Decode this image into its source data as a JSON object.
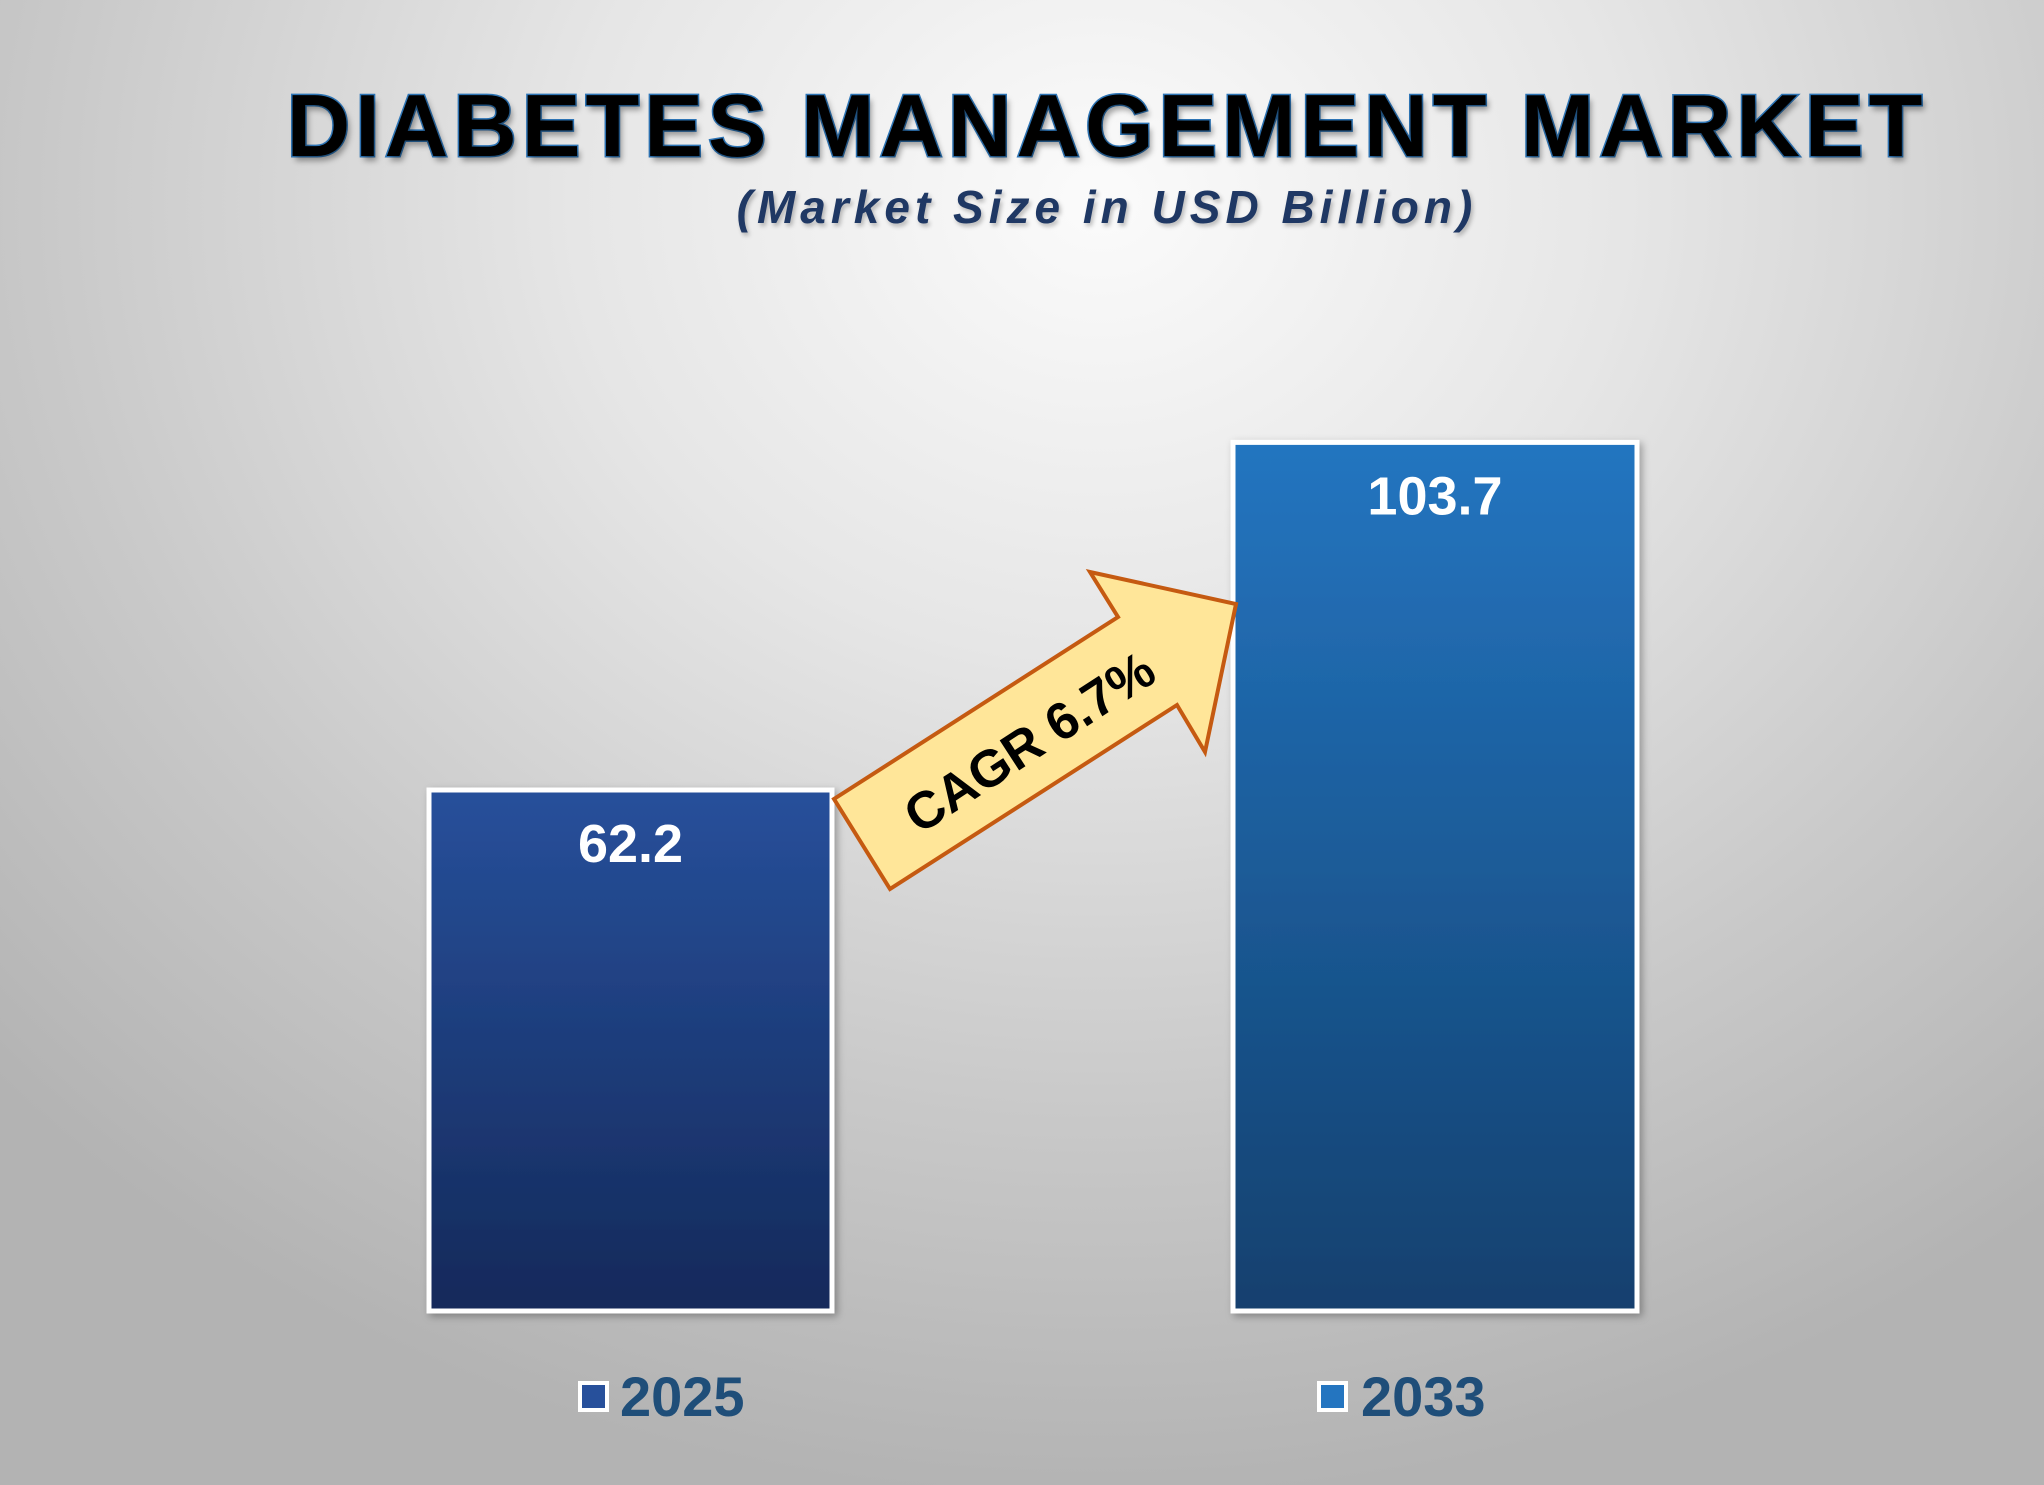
{
  "chart_data": {
    "type": "bar",
    "title": "DIABETES MANAGEMENT MARKET",
    "subtitle": "(Market Size in USD Billion)",
    "categories": [
      "2025",
      "2033"
    ],
    "values": [
      62.2,
      103.7
    ],
    "data_labels": [
      "62.2",
      "103.7"
    ],
    "colors": [
      [
        "#27509b",
        "#14295a"
      ],
      [
        "#2475c0",
        "#12406e"
      ]
    ],
    "legend": {
      "placement": "bottom",
      "entries": [
        "2025",
        "2033"
      ]
    },
    "annotation": {
      "text": "CAGR 6.7%",
      "shape": "arrow",
      "fill": "#ffe699",
      "stroke": "#c55a11"
    },
    "ylim": [
      0,
      103.7
    ],
    "grid": false
  }
}
